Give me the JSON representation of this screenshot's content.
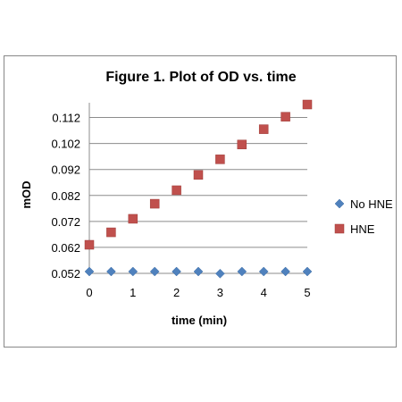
{
  "chart_data": {
    "type": "scatter",
    "title": "Figure 1. Plot of OD vs. time",
    "xlabel": "time (min)",
    "ylabel": "mOD",
    "xlim": [
      0,
      5
    ],
    "ylim": [
      0.052,
      0.117
    ],
    "x_ticks": [
      "0",
      "1",
      "2",
      "3",
      "4",
      "5"
    ],
    "y_ticks": [
      "0.052",
      "0.062",
      "0.072",
      "0.082",
      "0.092",
      "0.102",
      "0.112"
    ],
    "grid": "horizontal",
    "legend_position": "right",
    "series": [
      {
        "name": "No HNE",
        "marker": "diamond",
        "color": "#4f81bd",
        "x": [
          0,
          0.5,
          1,
          1.5,
          2,
          2.5,
          3,
          3.5,
          4,
          4.5,
          5
        ],
        "y": [
          0.0527,
          0.0527,
          0.0527,
          0.0527,
          0.0527,
          0.0527,
          0.0519,
          0.0527,
          0.0527,
          0.0527,
          0.0527
        ]
      },
      {
        "name": "HNE",
        "marker": "square",
        "color": "#c0504d",
        "x": [
          0,
          0.5,
          1,
          1.5,
          2,
          2.5,
          3,
          3.5,
          4,
          4.5,
          5
        ],
        "y": [
          0.063,
          0.0678,
          0.073,
          0.0788,
          0.084,
          0.0899,
          0.0959,
          0.1016,
          0.1075,
          0.1123,
          0.117
        ]
      }
    ]
  }
}
